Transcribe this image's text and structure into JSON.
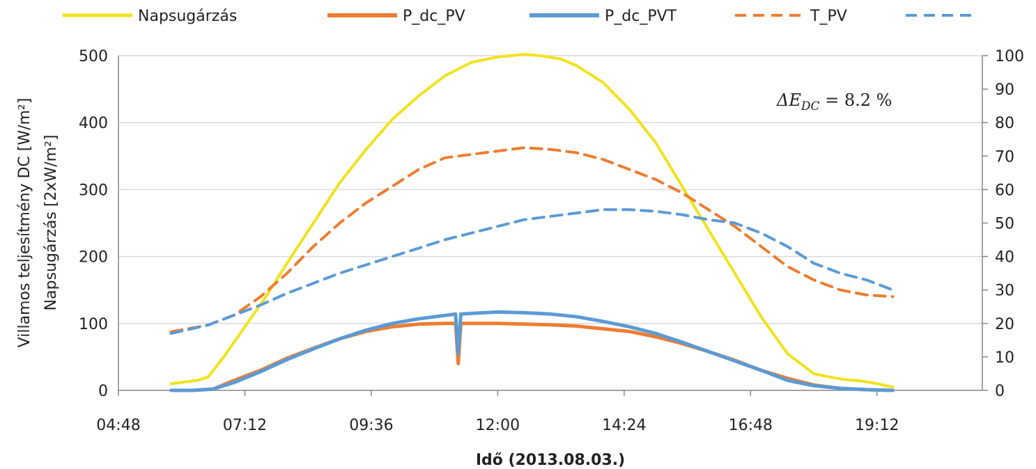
{
  "chart_data": {
    "type": "line",
    "xlabel": "Idő (2013.08.03.)",
    "ylabel_left_line1": "Villamos teljesítmény DC [W/m²]",
    "ylabel_left_line2": "Napsugárzás [2xW/m²]",
    "ylim_left": [
      0,
      500
    ],
    "ylim_right": [
      0,
      100
    ],
    "y_ticks_left": [
      "0",
      "100",
      "200",
      "300",
      "400",
      "500"
    ],
    "y_ticks_right": [
      "0",
      "10",
      "20",
      "30",
      "40",
      "50",
      "60",
      "70",
      "80",
      "90",
      "100"
    ],
    "x_ticks": [
      "04:48",
      "07:12",
      "09:36",
      "12:00",
      "14:24",
      "16:48",
      "19:12"
    ],
    "x_range_hours": [
      4.8,
      21.2
    ],
    "grid": true,
    "legend_position": "top",
    "annotation": {
      "base": "ΔE",
      "sub": "DC",
      "rest": " = 8.2 %"
    },
    "series": [
      {
        "name": "Napsugárzás",
        "axis": "left",
        "color": "#f2e21e",
        "dash": false,
        "width": 4,
        "x": [
          5.8,
          6.3,
          6.5,
          6.8,
          7.2,
          7.6,
          8.0,
          8.5,
          9.0,
          9.5,
          10.0,
          10.5,
          11.0,
          11.5,
          12.0,
          12.5,
          12.8,
          13.2,
          13.5,
          14.0,
          14.5,
          15.0,
          15.5,
          16.0,
          16.5,
          17.0,
          17.5,
          18.0,
          18.3,
          18.6,
          18.9,
          19.2,
          19.5
        ],
        "y": [
          10,
          15,
          20,
          50,
          95,
          140,
          190,
          250,
          310,
          360,
          405,
          440,
          470,
          490,
          498,
          502,
          500,
          495,
          485,
          460,
          420,
          370,
          305,
          240,
          175,
          110,
          55,
          25,
          20,
          16,
          14,
          10,
          5
        ]
      },
      {
        "name": "P_dc_PV",
        "axis": "left",
        "color": "#ed7d31",
        "dash": false,
        "width": 5,
        "x": [
          5.8,
          6.2,
          6.6,
          7.0,
          7.5,
          8.0,
          8.5,
          9.0,
          9.5,
          10.0,
          10.5,
          11.0,
          11.2,
          11.25,
          11.3,
          11.5,
          12.0,
          12.5,
          13.0,
          13.5,
          14.0,
          14.5,
          15.0,
          15.5,
          16.0,
          16.5,
          17.0,
          17.5,
          18.0,
          18.5,
          19.0,
          19.5
        ],
        "y": [
          0,
          0,
          2,
          15,
          30,
          48,
          63,
          77,
          88,
          95,
          99,
          100,
          100,
          40,
          100,
          100,
          100,
          99,
          98,
          96,
          92,
          88,
          80,
          70,
          58,
          45,
          30,
          18,
          8,
          3,
          1,
          0
        ]
      },
      {
        "name": "P_dc_PVT",
        "axis": "left",
        "color": "#5b9bd5",
        "dash": false,
        "width": 5,
        "x": [
          5.8,
          6.2,
          6.6,
          7.0,
          7.5,
          8.0,
          8.5,
          9.0,
          9.5,
          10.0,
          10.5,
          11.0,
          11.2,
          11.25,
          11.3,
          11.5,
          12.0,
          12.5,
          13.0,
          13.5,
          14.0,
          14.5,
          15.0,
          15.5,
          16.0,
          16.5,
          17.0,
          17.5,
          18.0,
          18.5,
          19.0,
          19.5
        ],
        "y": [
          0,
          0,
          2,
          12,
          28,
          46,
          62,
          77,
          90,
          100,
          107,
          112,
          114,
          55,
          114,
          115,
          117,
          116,
          114,
          110,
          103,
          95,
          85,
          72,
          58,
          44,
          30,
          15,
          7,
          3,
          1,
          0
        ]
      },
      {
        "name": "T_PV",
        "axis": "right",
        "color": "#ed7d31",
        "dash": true,
        "width": 4,
        "x": [
          5.8,
          6.5,
          7.0,
          7.5,
          8.0,
          8.5,
          9.0,
          9.5,
          10.0,
          10.5,
          11.0,
          11.5,
          12.0,
          12.5,
          13.0,
          13.5,
          14.0,
          14.5,
          15.0,
          15.5,
          16.0,
          16.5,
          17.0,
          17.5,
          18.0,
          18.5,
          19.0,
          19.5
        ],
        "y": [
          17.5,
          19.5,
          22.5,
          28,
          35,
          43,
          50,
          56,
          61,
          66,
          69.5,
          70.5,
          71.5,
          72.5,
          72,
          71,
          69,
          66,
          63,
          59,
          54,
          49,
          43,
          37,
          33,
          30,
          28.5,
          28
        ]
      },
      {
        "name": "",
        "axis": "right",
        "color": "#5b9bd5",
        "dash": true,
        "width": 4,
        "x": [
          5.8,
          6.5,
          7.0,
          7.5,
          8.0,
          8.5,
          9.0,
          9.5,
          10.0,
          10.5,
          11.0,
          11.5,
          12.0,
          12.5,
          13.0,
          13.5,
          14.0,
          14.5,
          15.0,
          15.5,
          16.0,
          16.5,
          17.0,
          17.5,
          18.0,
          18.5,
          19.0,
          19.5
        ],
        "y": [
          17,
          19.5,
          22.5,
          25.5,
          29,
          32,
          35,
          37.5,
          40,
          42.5,
          45,
          47,
          49,
          51,
          52,
          53,
          54,
          54,
          53.5,
          52.5,
          51,
          50,
          47,
          43,
          38,
          35,
          33,
          30
        ]
      }
    ]
  }
}
